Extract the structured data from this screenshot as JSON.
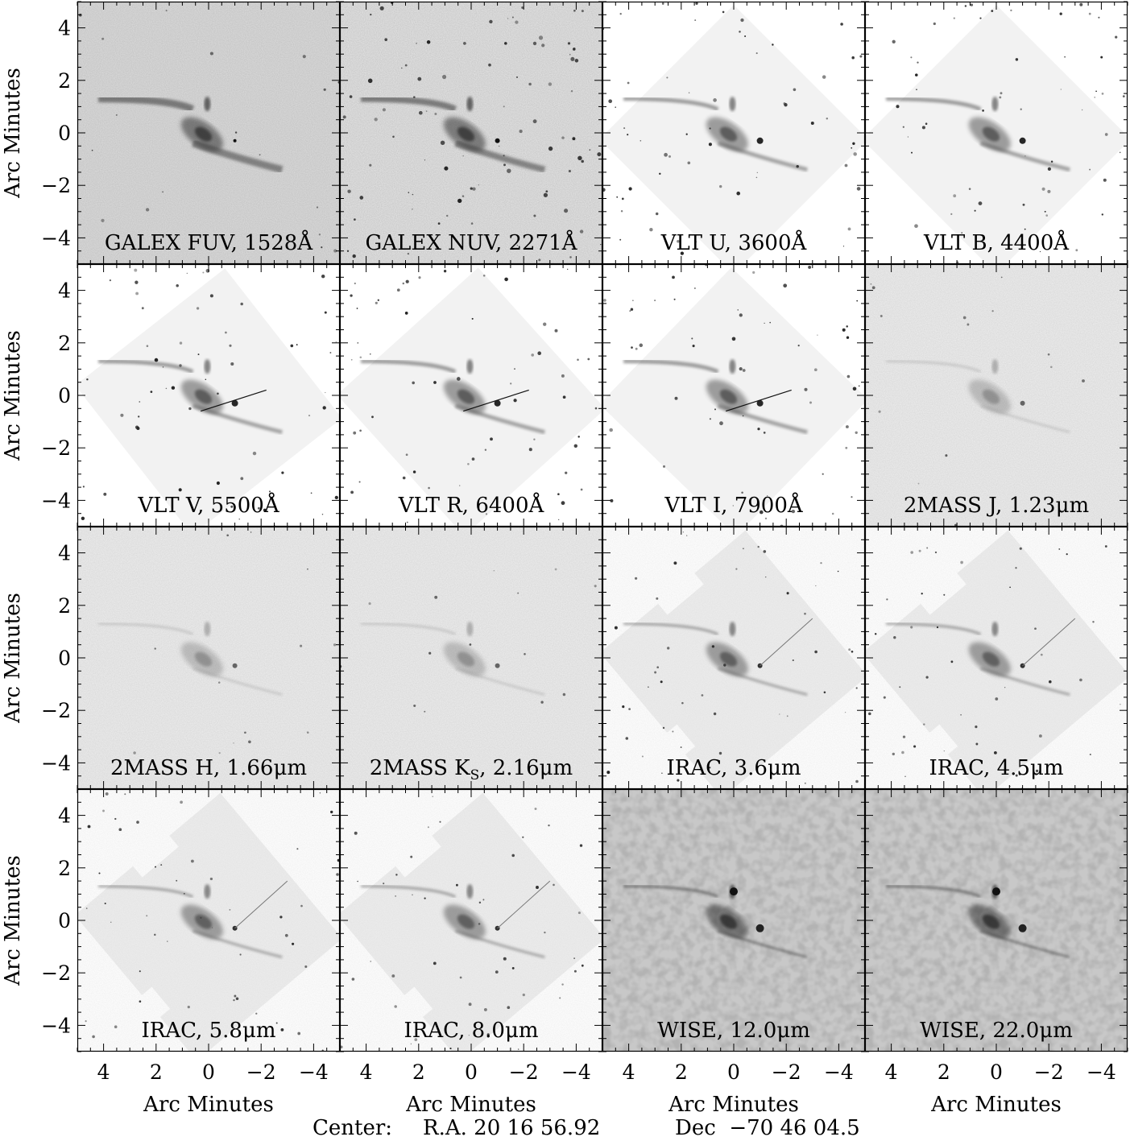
{
  "figure": {
    "axis_label": "Arc Minutes",
    "y_ticks": [
      "4",
      "2",
      "0",
      "−2",
      "−4"
    ],
    "x_ticks": [
      "4",
      "2",
      "0",
      "−2",
      "−4"
    ],
    "center_label": "Center:",
    "ra_text": "R.A. 20 16 56.92",
    "dec_text": "Dec  −70 46 04.5",
    "panels": [
      {
        "label": "GALEX FUV, 1528Å",
        "style": "uvfar"
      },
      {
        "label": "GALEX NUV, 2271Å",
        "style": "uvnear"
      },
      {
        "label": "VLT U, 3600Å",
        "style": "vlt"
      },
      {
        "label": "VLT B, 4400Å",
        "style": "vlt"
      },
      {
        "label": "VLT V, 5500Å",
        "style": "vlt"
      },
      {
        "label": "VLT R, 6400Å",
        "style": "vlt"
      },
      {
        "label": "VLT I, 7900Å",
        "style": "vlt"
      },
      {
        "label": "2MASS J, 1.23μm",
        "style": "twomass"
      },
      {
        "label": "2MASS H, 1.66μm",
        "style": "twomass"
      },
      {
        "label": "2MASS K",
        "label_sub": "S",
        "label_tail": ", 2.16μm",
        "style": "twomass"
      },
      {
        "label": "IRAC, 3.6μm",
        "style": "irac"
      },
      {
        "label": "IRAC, 4.5μm",
        "style": "irac"
      },
      {
        "label": "IRAC, 5.8μm",
        "style": "irac"
      },
      {
        "label": "IRAC, 8.0μm",
        "style": "irac"
      },
      {
        "label": "WISE, 12.0μm",
        "style": "wise"
      },
      {
        "label": "WISE, 22.0μm",
        "style": "wise"
      }
    ]
  }
}
